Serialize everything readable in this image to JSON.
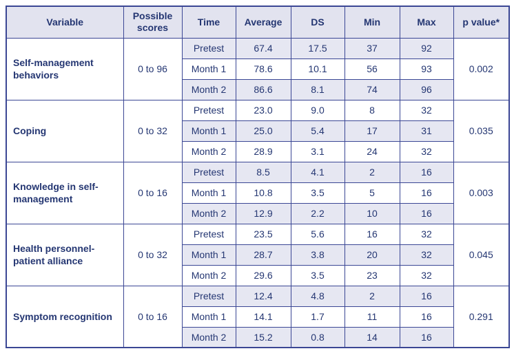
{
  "colors": {
    "border": "#3a4694",
    "text": "#243672",
    "header_bg": "#e2e3ef",
    "stripe_bg": "#e6e7f2",
    "page_bg": "#ffffff"
  },
  "table": {
    "headers": [
      {
        "key": "variable",
        "label": "Variable"
      },
      {
        "key": "possible_scores",
        "label": "Possible scores"
      },
      {
        "key": "time",
        "label": "Time"
      },
      {
        "key": "average",
        "label": "Average"
      },
      {
        "key": "ds",
        "label": "DS"
      },
      {
        "key": "min",
        "label": "Min"
      },
      {
        "key": "max",
        "label": "Max"
      },
      {
        "key": "p_value",
        "label": "p value*"
      }
    ],
    "groups": [
      {
        "variable": "Self-management behaviors",
        "possible_scores": "0 to 96",
        "p_value": "0.002",
        "rows": [
          {
            "time": "Pretest",
            "average": "67.4",
            "ds": "17.5",
            "min": "37",
            "max": "92"
          },
          {
            "time": "Month 1",
            "average": "78.6",
            "ds": "10.1",
            "min": "56",
            "max": "93"
          },
          {
            "time": "Month 2",
            "average": "86.6",
            "ds": "8.1",
            "min": "74",
            "max": "96"
          }
        ]
      },
      {
        "variable": "Coping",
        "possible_scores": "0 to 32",
        "p_value": "0.035",
        "rows": [
          {
            "time": "Pretest",
            "average": "23.0",
            "ds": "9.0",
            "min": "8",
            "max": "32"
          },
          {
            "time": "Month 1",
            "average": "25.0",
            "ds": "5.4",
            "min": "17",
            "max": "31"
          },
          {
            "time": "Month 2",
            "average": "28.9",
            "ds": "3.1",
            "min": "24",
            "max": "32"
          }
        ]
      },
      {
        "variable": "Knowledge in self-management",
        "possible_scores": "0 to 16",
        "p_value": "0.003",
        "rows": [
          {
            "time": "Pretest",
            "average": "8.5",
            "ds": "4.1",
            "min": "2",
            "max": "16"
          },
          {
            "time": "Month 1",
            "average": "10.8",
            "ds": "3.5",
            "min": "5",
            "max": "16"
          },
          {
            "time": "Month 2",
            "average": "12.9",
            "ds": "2.2",
            "min": "10",
            "max": "16"
          }
        ]
      },
      {
        "variable": "Health personnel-patient alliance",
        "possible_scores": "0 to 32",
        "p_value": "0.045",
        "rows": [
          {
            "time": "Pretest",
            "average": "23.5",
            "ds": "5.6",
            "min": "16",
            "max": "32"
          },
          {
            "time": "Month 1",
            "average": "28.7",
            "ds": "3.8",
            "min": "20",
            "max": "32"
          },
          {
            "time": "Month 2",
            "average": "29.6",
            "ds": "3.5",
            "min": "23",
            "max": "32"
          }
        ]
      },
      {
        "variable": "Symptom recognition",
        "possible_scores": "0 to 16",
        "p_value": "0.291",
        "rows": [
          {
            "time": "Pretest",
            "average": "12.4",
            "ds": "4.8",
            "min": "2",
            "max": "16"
          },
          {
            "time": "Month 1",
            "average": "14.1",
            "ds": "1.7",
            "min": "11",
            "max": "16"
          },
          {
            "time": "Month 2",
            "average": "15.2",
            "ds": "0.8",
            "min": "14",
            "max": "16"
          }
        ]
      }
    ]
  }
}
